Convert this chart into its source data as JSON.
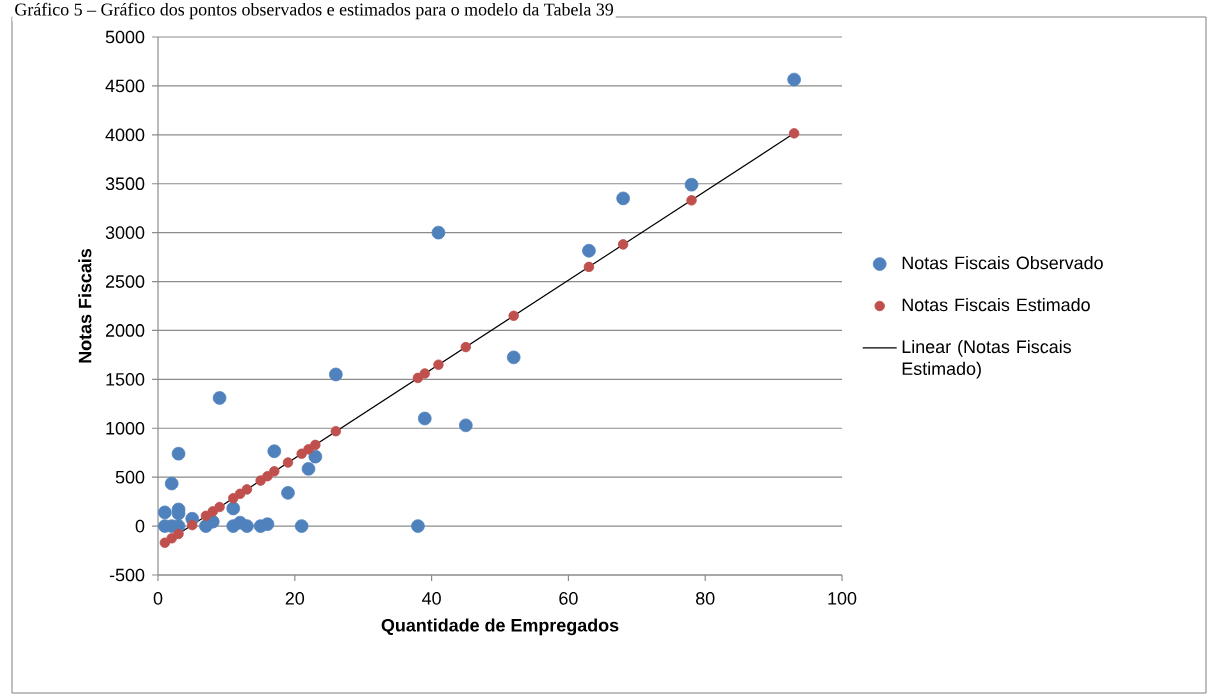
{
  "chart_data": {
    "type": "scatter",
    "title": "Gráfico 5 – Gráfico dos pontos observados e estimados para o modelo da Tabela 39",
    "xlabel": "Quantidade de Empregados",
    "ylabel": "Notas Fiscais",
    "xlim": [
      0,
      100
    ],
    "xticks": [
      0,
      20,
      40,
      60,
      80,
      100
    ],
    "ylim": [
      -500,
      5000
    ],
    "yticks": [
      -500,
      0,
      500,
      1000,
      1500,
      2000,
      2500,
      3000,
      3500,
      4000,
      4500,
      5000
    ],
    "grid": "y",
    "legend": "right",
    "marker": "circle",
    "series": [
      {
        "name": "Notas Fiscais Observado",
        "color": "#4f81bd",
        "x": [
          1,
          2,
          3,
          3,
          3,
          5,
          1,
          2,
          3,
          7,
          8,
          9,
          11,
          11,
          12,
          13,
          15,
          16,
          17,
          19,
          21,
          22,
          23,
          26,
          38,
          39,
          41,
          45,
          52,
          63,
          68,
          78,
          93
        ],
        "values": [
          140,
          435,
          740,
          170,
          130,
          75,
          0,
          0,
          0,
          0,
          45,
          1310,
          180,
          0,
          35,
          0,
          0,
          20,
          765,
          340,
          0,
          585,
          710,
          1550,
          0,
          1100,
          3000,
          1030,
          1725,
          2815,
          3350,
          3490,
          4565
        ]
      },
      {
        "name": "Notas Fiscais Estimado",
        "color": "#c0504d",
        "x": [
          1,
          2,
          3,
          5,
          7,
          8,
          9,
          11,
          12,
          13,
          15,
          16,
          17,
          19,
          21,
          22,
          23,
          26,
          38,
          39,
          41,
          45,
          52,
          63,
          68,
          78,
          93
        ],
        "values": [
          -170,
          -125,
          -80,
          10,
          105,
          150,
          195,
          285,
          330,
          375,
          465,
          510,
          560,
          650,
          740,
          785,
          830,
          970,
          1515,
          1560,
          1650,
          1830,
          2150,
          2650,
          2880,
          3330,
          4015
        ]
      },
      {
        "name": "Linear (Notas Fiscais Estimado)",
        "type": "line",
        "marker": "none",
        "color": "#000000",
        "x": [
          1,
          93
        ],
        "values": [
          -170,
          4015
        ]
      }
    ]
  }
}
